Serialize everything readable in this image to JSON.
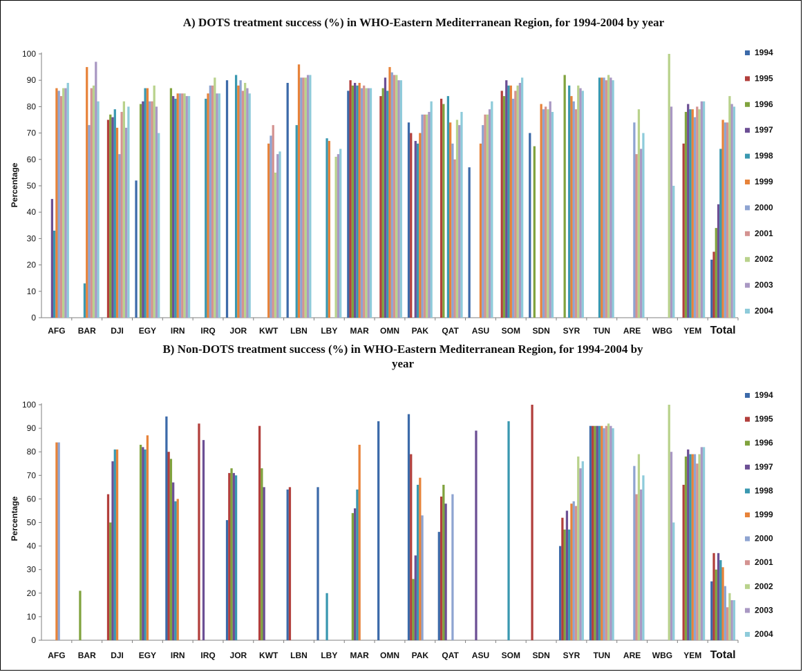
{
  "chart_data": [
    {
      "type": "bar",
      "title": "A) DOTS treatment success (%) in WHO-Eastern Mediterranean Region, for 1994-2004 by year",
      "ylabel": "Percentage",
      "ylim": [
        0,
        100
      ],
      "yticks": [
        0,
        10,
        20,
        30,
        40,
        50,
        60,
        70,
        80,
        90,
        100
      ],
      "legend_position": "right",
      "grid": false,
      "categories": [
        "AFG",
        "BAR",
        "DJI",
        "EGY",
        "IRN",
        "IRQ",
        "JOR",
        "KWT",
        "LBN",
        "LBY",
        "MAR",
        "OMN",
        "PAK",
        "QAT",
        "ASU",
        "SOM",
        "SDN",
        "SYR",
        "TUN",
        "ARE",
        "WBG",
        "YEM",
        "Total"
      ],
      "series": [
        {
          "name": "1994",
          "color": "#3c6aa9",
          "values": [
            null,
            null,
            null,
            52,
            null,
            null,
            90,
            null,
            89,
            null,
            86,
            null,
            74,
            null,
            57,
            null,
            70,
            null,
            null,
            null,
            null,
            null,
            22
          ]
        },
        {
          "name": "1995",
          "color": "#b23f3c",
          "values": [
            null,
            null,
            75,
            null,
            null,
            null,
            null,
            null,
            null,
            null,
            90,
            84,
            70,
            83,
            null,
            86,
            null,
            null,
            null,
            null,
            null,
            66,
            25
          ]
        },
        {
          "name": "1996",
          "color": "#80a33e",
          "values": [
            null,
            null,
            77,
            81,
            87,
            null,
            null,
            null,
            null,
            null,
            88,
            87,
            null,
            81,
            null,
            84,
            65,
            92,
            null,
            null,
            null,
            78,
            34
          ]
        },
        {
          "name": "1997",
          "color": "#6c4f94",
          "values": [
            45,
            null,
            76,
            82,
            84,
            null,
            null,
            null,
            null,
            null,
            89,
            91,
            67,
            null,
            null,
            90,
            null,
            null,
            null,
            null,
            null,
            81,
            43
          ]
        },
        {
          "name": "1998",
          "color": "#3a98b0",
          "values": [
            33,
            13,
            79,
            87,
            83,
            83,
            92,
            null,
            73,
            68,
            88,
            86,
            66,
            84,
            null,
            88,
            null,
            88,
            91,
            null,
            null,
            79,
            64
          ]
        },
        {
          "name": "1999",
          "color": "#e7833a",
          "values": [
            87,
            95,
            72,
            87,
            85,
            85,
            88,
            66,
            96,
            67,
            89,
            95,
            70,
            74,
            66,
            88,
            81,
            84,
            91,
            null,
            null,
            79,
            75
          ]
        },
        {
          "name": "2000",
          "color": "#8ea4d1",
          "values": [
            86,
            73,
            62,
            82,
            85,
            88,
            90,
            69,
            91,
            null,
            87,
            93,
            77,
            66,
            73,
            83,
            79,
            82,
            91,
            74,
            null,
            76,
            74
          ]
        },
        {
          "name": "2001",
          "color": "#d49391",
          "values": [
            84,
            87,
            78,
            82,
            85,
            88,
            86,
            73,
            91,
            null,
            88,
            92,
            77,
            60,
            77,
            86,
            80,
            79,
            90,
            62,
            null,
            80,
            74
          ]
        },
        {
          "name": "2002",
          "color": "#b9d28c",
          "values": [
            87,
            88,
            82,
            88,
            85,
            91,
            89,
            55,
            91,
            61,
            87,
            92,
            77,
            75,
            77,
            88,
            79,
            88,
            92,
            79,
            100,
            79,
            84
          ]
        },
        {
          "name": "2003",
          "color": "#a998c3",
          "values": [
            87,
            97,
            72,
            80,
            84,
            85,
            87,
            62,
            92,
            62,
            87,
            90,
            78,
            73,
            79,
            89,
            82,
            87,
            91,
            64,
            80,
            82,
            81
          ]
        },
        {
          "name": "2004",
          "color": "#8ecbda",
          "values": [
            89,
            82,
            80,
            70,
            84,
            85,
            85,
            63,
            92,
            64,
            87,
            90,
            82,
            78,
            82,
            91,
            78,
            86,
            90,
            70,
            50,
            82,
            80
          ]
        }
      ]
    },
    {
      "type": "bar",
      "title": "B) Non-DOTS treatment success (%) in WHO-Eastern Mediterranean Region, for 1994-2004 by year",
      "ylabel": "Percentage",
      "ylim": [
        0,
        100
      ],
      "yticks": [
        0,
        10,
        20,
        30,
        40,
        50,
        60,
        70,
        80,
        90,
        100
      ],
      "legend_position": "right",
      "grid": false,
      "categories": [
        "AFG",
        "BAR",
        "DJI",
        "EGY",
        "IRN",
        "IRQ",
        "JOR",
        "KWT",
        "LBN",
        "LBY",
        "MAR",
        "OMN",
        "PAK",
        "QAT",
        "ASU",
        "SOM",
        "SDN",
        "SYR",
        "TUN",
        "ARE",
        "WBG",
        "YEM",
        "Total"
      ],
      "series": [
        {
          "name": "1994",
          "color": "#3c6aa9",
          "values": [
            null,
            null,
            null,
            null,
            95,
            null,
            51,
            null,
            64,
            65,
            null,
            93,
            96,
            46,
            null,
            null,
            null,
            40,
            91,
            null,
            null,
            null,
            25
          ]
        },
        {
          "name": "1995",
          "color": "#b23f3c",
          "values": [
            null,
            null,
            62,
            null,
            80,
            92,
            71,
            91,
            65,
            null,
            null,
            null,
            79,
            61,
            null,
            null,
            100,
            52,
            91,
            null,
            null,
            66,
            37
          ]
        },
        {
          "name": "1996",
          "color": "#80a33e",
          "values": [
            null,
            21,
            50,
            83,
            77,
            null,
            73,
            73,
            null,
            null,
            54,
            null,
            26,
            66,
            null,
            null,
            null,
            47,
            91,
            null,
            null,
            78,
            30
          ]
        },
        {
          "name": "1997",
          "color": "#6c4f94",
          "values": [
            null,
            null,
            76,
            82,
            67,
            85,
            71,
            65,
            null,
            null,
            56,
            null,
            36,
            58,
            89,
            null,
            null,
            55,
            91,
            null,
            null,
            81,
            37
          ]
        },
        {
          "name": "1998",
          "color": "#3a98b0",
          "values": [
            null,
            null,
            81,
            81,
            59,
            null,
            70,
            null,
            null,
            20,
            64,
            null,
            66,
            null,
            null,
            93,
            null,
            47,
            91,
            null,
            null,
            79,
            34
          ]
        },
        {
          "name": "1999",
          "color": "#e7833a",
          "values": [
            84,
            null,
            81,
            87,
            60,
            null,
            null,
            null,
            null,
            null,
            83,
            null,
            69,
            null,
            null,
            null,
            null,
            58,
            91,
            null,
            null,
            79,
            31
          ]
        },
        {
          "name": "2000",
          "color": "#8ea4d1",
          "values": [
            84,
            null,
            null,
            null,
            null,
            null,
            null,
            null,
            null,
            null,
            null,
            null,
            53,
            62,
            null,
            null,
            null,
            59,
            90,
            74,
            null,
            79,
            23
          ]
        },
        {
          "name": "2001",
          "color": "#d49391",
          "values": [
            null,
            null,
            null,
            null,
            null,
            null,
            null,
            null,
            null,
            null,
            null,
            null,
            null,
            null,
            null,
            null,
            null,
            57,
            91,
            62,
            null,
            75,
            14
          ]
        },
        {
          "name": "2002",
          "color": "#b9d28c",
          "values": [
            null,
            null,
            null,
            null,
            null,
            null,
            null,
            null,
            null,
            null,
            null,
            null,
            null,
            null,
            null,
            null,
            null,
            78,
            92,
            79,
            100,
            79,
            20
          ]
        },
        {
          "name": "2003",
          "color": "#a998c3",
          "values": [
            null,
            null,
            null,
            null,
            null,
            null,
            null,
            null,
            null,
            null,
            null,
            null,
            null,
            null,
            null,
            null,
            null,
            73,
            91,
            64,
            80,
            82,
            17
          ]
        },
        {
          "name": "2004",
          "color": "#8ecbda",
          "values": [
            null,
            null,
            null,
            null,
            null,
            null,
            null,
            null,
            null,
            null,
            null,
            null,
            null,
            null,
            null,
            null,
            null,
            76,
            90,
            70,
            50,
            82,
            17
          ]
        }
      ]
    }
  ]
}
